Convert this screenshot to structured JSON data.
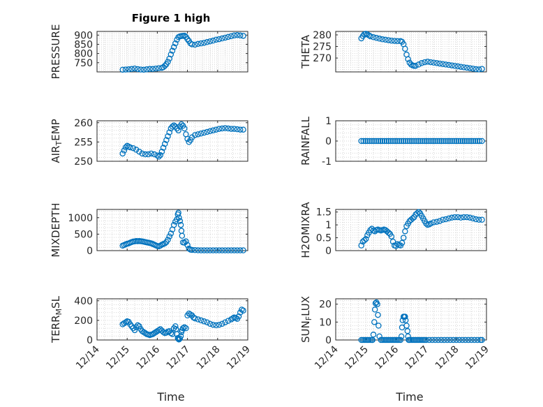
{
  "colors": {
    "marker": "#0072BD",
    "axis": "#262626",
    "grid": "#d6d6d6"
  },
  "xlabel": "Time",
  "chart_data": [
    {
      "type": "scatter",
      "title": "Figure 1 high",
      "ylabel": "PRESSURE",
      "ylim": [
        700,
        920
      ],
      "yticks": [
        750,
        800,
        850,
        900
      ],
      "xticks": [
        "12/14",
        "12/15",
        "12/16",
        "12/17",
        "12/18",
        "12/19"
      ],
      "grid": true,
      "x": [
        14.85,
        14.95,
        15.05,
        15.15,
        15.25,
        15.35,
        15.45,
        15.55,
        15.65,
        15.75,
        15.85,
        15.95,
        16.05,
        16.15,
        16.2,
        16.25,
        16.3,
        16.35,
        16.4,
        16.45,
        16.5,
        16.55,
        16.6,
        16.65,
        16.7,
        16.75,
        16.8,
        16.85,
        16.9,
        16.95,
        17.0,
        17.05,
        17.1,
        17.15,
        17.25,
        17.35,
        17.45,
        17.55,
        17.65,
        17.75,
        17.85,
        17.95,
        18.05,
        18.15,
        18.25,
        18.35,
        18.45,
        18.55,
        18.65,
        18.75,
        18.85
      ],
      "y": [
        712,
        713,
        714,
        716,
        718,
        715,
        713,
        712,
        714,
        716,
        716,
        718,
        720,
        722,
        726,
        733,
        742,
        755,
        772,
        795,
        815,
        835,
        855,
        875,
        889,
        893,
        895,
        896,
        897,
        890,
        878,
        868,
        855,
        850,
        848,
        852,
        855,
        858,
        862,
        866,
        870,
        875,
        878,
        882,
        886,
        890,
        894,
        898,
        900,
        898,
        896
      ]
    },
    {
      "type": "scatter",
      "title": "",
      "ylabel": "THETA",
      "ylim": [
        264,
        281.5
      ],
      "yticks": [
        270,
        275,
        280
      ],
      "xticks": [
        "12/14",
        "12/15",
        "12/16",
        "12/17",
        "12/18",
        "12/19"
      ],
      "grid": true,
      "x": [
        14.85,
        14.9,
        14.95,
        15.0,
        15.05,
        15.1,
        15.15,
        15.25,
        15.35,
        15.45,
        15.55,
        15.65,
        15.75,
        15.85,
        15.95,
        16.05,
        16.15,
        16.2,
        16.25,
        16.3,
        16.35,
        16.4,
        16.45,
        16.5,
        16.55,
        16.6,
        16.65,
        16.75,
        16.85,
        16.95,
        17.05,
        17.15,
        17.25,
        17.35,
        17.45,
        17.55,
        17.65,
        17.75,
        17.85,
        17.95,
        18.05,
        18.15,
        18.25,
        18.35,
        18.45,
        18.55,
        18.65,
        18.75,
        18.85
      ],
      "y": [
        278.5,
        279.5,
        280.3,
        280.5,
        280.2,
        279.8,
        279.4,
        279.0,
        278.7,
        278.4,
        278.1,
        277.9,
        277.7,
        277.5,
        277.4,
        277.3,
        277.3,
        277.0,
        276.0,
        274.0,
        271.5,
        269.5,
        268.0,
        267.2,
        266.8,
        266.6,
        266.6,
        267.2,
        267.8,
        268.2,
        268.4,
        268.2,
        268.0,
        267.8,
        267.6,
        267.4,
        267.2,
        267.0,
        266.8,
        266.6,
        266.4,
        266.2,
        266.0,
        265.8,
        265.6,
        265.4,
        265.2,
        265.1,
        265.3
      ]
    },
    {
      "type": "scatter",
      "title": "",
      "ylabel": "AIR_TEMP",
      "ylim": [
        250,
        260.5
      ],
      "yticks": [
        250,
        255,
        260
      ],
      "xticks": [
        "12/14",
        "12/15",
        "12/16",
        "12/17",
        "12/18",
        "12/19"
      ],
      "grid": true,
      "x": [
        14.85,
        14.9,
        14.95,
        15.0,
        15.05,
        15.1,
        15.2,
        15.3,
        15.4,
        15.5,
        15.6,
        15.7,
        15.8,
        15.9,
        16.0,
        16.05,
        16.1,
        16.15,
        16.2,
        16.25,
        16.3,
        16.35,
        16.4,
        16.45,
        16.5,
        16.55,
        16.6,
        16.65,
        16.7,
        16.75,
        16.8,
        16.85,
        16.9,
        16.95,
        17.0,
        17.05,
        17.1,
        17.15,
        17.25,
        17.35,
        17.45,
        17.55,
        17.65,
        17.75,
        17.85,
        17.95,
        18.05,
        18.15,
        18.25,
        18.35,
        18.45,
        18.55,
        18.65,
        18.75,
        18.85
      ],
      "y": [
        252.0,
        252.8,
        253.6,
        254.0,
        253.8,
        253.6,
        253.4,
        253.0,
        252.5,
        252.0,
        251.8,
        251.8,
        252.0,
        251.8,
        251.5,
        251.2,
        251.6,
        252.5,
        253.5,
        254.5,
        255.5,
        256.5,
        257.5,
        258.5,
        259.0,
        259.3,
        259.0,
        258.5,
        258.0,
        259.0,
        259.6,
        259.2,
        258.5,
        257.0,
        255.8,
        255.0,
        255.5,
        256.2,
        256.8,
        257.0,
        257.2,
        257.4,
        257.6,
        257.8,
        258.0,
        258.2,
        258.4,
        258.5,
        258.6,
        258.5,
        258.4,
        258.4,
        258.3,
        258.2,
        258.2
      ]
    },
    {
      "type": "scatter",
      "title": "",
      "ylabel": "RAINFALL",
      "ylim": [
        -1,
        1
      ],
      "yticks": [
        -1,
        0,
        1
      ],
      "xticks": [
        "12/14",
        "12/15",
        "12/16",
        "12/17",
        "12/18",
        "12/19"
      ],
      "grid": true,
      "x": [
        14.85,
        14.92,
        14.99,
        15.06,
        15.13,
        15.2,
        15.27,
        15.34,
        15.41,
        15.48,
        15.55,
        15.62,
        15.69,
        15.76,
        15.83,
        15.9,
        15.97,
        16.04,
        16.11,
        16.18,
        16.25,
        16.32,
        16.39,
        16.46,
        16.53,
        16.6,
        16.67,
        16.74,
        16.81,
        16.88,
        16.95,
        17.02,
        17.09,
        17.16,
        17.23,
        17.3,
        17.37,
        17.44,
        17.51,
        17.58,
        17.65,
        17.72,
        17.79,
        17.86,
        17.93,
        18.0,
        18.07,
        18.14,
        18.21,
        18.28,
        18.35,
        18.42,
        18.49,
        18.56,
        18.63,
        18.7,
        18.77,
        18.85
      ],
      "y": [
        0,
        0,
        0,
        0,
        0,
        0,
        0,
        0,
        0,
        0,
        0,
        0,
        0,
        0,
        0,
        0,
        0,
        0,
        0,
        0,
        0,
        0,
        0,
        0,
        0,
        0,
        0,
        0,
        0,
        0,
        0,
        0,
        0,
        0,
        0,
        0,
        0,
        0,
        0,
        0,
        0,
        0,
        0,
        0,
        0,
        0,
        0,
        0,
        0,
        0,
        0,
        0,
        0,
        0,
        0,
        0,
        0,
        0
      ]
    },
    {
      "type": "scatter",
      "title": "",
      "ylabel": "MIXDEPTH",
      "ylim": [
        0,
        1250
      ],
      "yticks": [
        0,
        500,
        1000
      ],
      "xticks": [
        "12/14",
        "12/15",
        "12/16",
        "12/17",
        "12/18",
        "12/19"
      ],
      "grid": true,
      "x": [
        14.85,
        14.9,
        14.95,
        15.0,
        15.05,
        15.1,
        15.15,
        15.2,
        15.25,
        15.3,
        15.35,
        15.4,
        15.45,
        15.5,
        15.55,
        15.6,
        15.65,
        15.7,
        15.75,
        15.8,
        15.85,
        15.9,
        15.95,
        16.0,
        16.05,
        16.1,
        16.15,
        16.2,
        16.25,
        16.3,
        16.35,
        16.4,
        16.45,
        16.5,
        16.55,
        16.6,
        16.65,
        16.68,
        16.7,
        16.72,
        16.75,
        16.78,
        16.8,
        16.82,
        16.85,
        16.9,
        16.95,
        17.0,
        17.05,
        17.1,
        17.15,
        17.25,
        17.35,
        17.45,
        17.55,
        17.65,
        17.75,
        17.85,
        17.95,
        18.05,
        18.15,
        18.25,
        18.35,
        18.45,
        18.55,
        18.65,
        18.75,
        18.85
      ],
      "y": [
        150,
        170,
        190,
        210,
        220,
        240,
        260,
        275,
        280,
        290,
        285,
        290,
        285,
        280,
        270,
        260,
        250,
        240,
        230,
        220,
        200,
        180,
        160,
        140,
        130,
        150,
        180,
        200,
        220,
        260,
        330,
        430,
        520,
        640,
        780,
        880,
        950,
        1100,
        1150,
        1000,
        900,
        780,
        600,
        450,
        250,
        240,
        280,
        170,
        60,
        30,
        20,
        15,
        10,
        8,
        8,
        8,
        8,
        8,
        8,
        8,
        8,
        8,
        8,
        8,
        8,
        8,
        8,
        8
      ]
    },
    {
      "type": "scatter",
      "title": "",
      "ylabel": "H2OMIXRA",
      "ylim": [
        0,
        1.6
      ],
      "yticks": [
        0,
        0.5,
        1,
        1.5
      ],
      "xticks": [
        "12/14",
        "12/15",
        "12/16",
        "12/17",
        "12/18",
        "12/19"
      ],
      "grid": true,
      "x": [
        14.85,
        14.9,
        14.95,
        15.0,
        15.05,
        15.1,
        15.15,
        15.2,
        15.25,
        15.3,
        15.35,
        15.4,
        15.45,
        15.5,
        15.55,
        15.6,
        15.65,
        15.7,
        15.75,
        15.8,
        15.85,
        15.9,
        15.95,
        16.0,
        16.05,
        16.1,
        16.15,
        16.2,
        16.25,
        16.3,
        16.35,
        16.4,
        16.45,
        16.5,
        16.55,
        16.6,
        16.65,
        16.7,
        16.75,
        16.8,
        16.85,
        16.9,
        16.95,
        17.0,
        17.05,
        17.1,
        17.15,
        17.25,
        17.35,
        17.45,
        17.55,
        17.65,
        17.75,
        17.85,
        17.95,
        18.05,
        18.15,
        18.25,
        18.35,
        18.45,
        18.55,
        18.65,
        18.75,
        18.85
      ],
      "y": [
        0.2,
        0.35,
        0.4,
        0.45,
        0.6,
        0.7,
        0.8,
        0.85,
        0.78,
        0.75,
        0.8,
        0.82,
        0.8,
        0.78,
        0.8,
        0.82,
        0.8,
        0.75,
        0.7,
        0.65,
        0.55,
        0.35,
        0.2,
        0.18,
        0.25,
        0.22,
        0.2,
        0.3,
        0.5,
        0.75,
        0.95,
        1.05,
        1.15,
        1.2,
        1.25,
        1.3,
        1.4,
        1.45,
        1.5,
        1.45,
        1.35,
        1.25,
        1.15,
        1.05,
        1.0,
        1.02,
        1.05,
        1.1,
        1.12,
        1.15,
        1.2,
        1.22,
        1.25,
        1.28,
        1.3,
        1.3,
        1.28,
        1.3,
        1.3,
        1.28,
        1.25,
        1.22,
        1.2,
        1.2
      ]
    },
    {
      "type": "scatter",
      "title": "",
      "ylabel": "TERR_MSL",
      "ylim": [
        0,
        420
      ],
      "yticks": [
        0,
        200,
        400
      ],
      "xticks": [
        "12/14",
        "12/15",
        "12/16",
        "12/17",
        "12/18",
        "12/19"
      ],
      "grid": true,
      "x": [
        14.85,
        14.9,
        14.95,
        15.0,
        15.05,
        15.1,
        15.15,
        15.2,
        15.25,
        15.3,
        15.35,
        15.4,
        15.45,
        15.5,
        15.55,
        15.6,
        15.65,
        15.7,
        15.75,
        15.8,
        15.85,
        15.9,
        15.95,
        16.0,
        16.05,
        16.1,
        16.15,
        16.2,
        16.25,
        16.3,
        16.35,
        16.4,
        16.45,
        16.5,
        16.55,
        16.6,
        16.62,
        16.65,
        16.68,
        16.7,
        16.72,
        16.75,
        16.78,
        16.8,
        16.82,
        16.85,
        16.9,
        16.95,
        17.0,
        17.05,
        17.1,
        17.15,
        17.2,
        17.25,
        17.35,
        17.45,
        17.55,
        17.65,
        17.75,
        17.85,
        17.95,
        18.05,
        18.15,
        18.25,
        18.35,
        18.45,
        18.5,
        18.55,
        18.6,
        18.65,
        18.7,
        18.75,
        18.8,
        18.85
      ],
      "y": [
        160,
        170,
        180,
        190,
        185,
        160,
        140,
        120,
        100,
        130,
        150,
        140,
        110,
        90,
        80,
        70,
        60,
        55,
        50,
        55,
        60,
        70,
        80,
        90,
        100,
        110,
        95,
        80,
        70,
        75,
        85,
        90,
        70,
        60,
        120,
        140,
        110,
        60,
        20,
        10,
        5,
        15,
        40,
        80,
        100,
        120,
        130,
        120,
        250,
        270,
        260,
        250,
        230,
        220,
        210,
        200,
        190,
        180,
        165,
        155,
        150,
        155,
        165,
        180,
        195,
        210,
        220,
        230,
        225,
        215,
        240,
        280,
        310,
        300
      ]
    },
    {
      "type": "scatter",
      "title": "",
      "ylabel": "SUN_FLUX",
      "ylim": [
        0,
        23
      ],
      "yticks": [
        0,
        10,
        20
      ],
      "xticks": [
        "12/14",
        "12/15",
        "12/16",
        "12/17",
        "12/18",
        "12/19"
      ],
      "grid": true,
      "x": [
        14.85,
        14.9,
        14.95,
        15.0,
        15.05,
        15.1,
        15.15,
        15.2,
        15.22,
        15.25,
        15.28,
        15.3,
        15.32,
        15.35,
        15.38,
        15.4,
        15.42,
        15.45,
        15.5,
        15.55,
        15.6,
        15.65,
        15.7,
        15.75,
        15.8,
        15.85,
        15.9,
        15.95,
        16.0,
        16.05,
        16.1,
        16.15,
        16.18,
        16.2,
        16.22,
        16.25,
        16.28,
        16.3,
        16.32,
        16.35,
        16.38,
        16.4,
        16.42,
        16.45,
        16.5,
        16.55,
        16.6,
        16.65,
        16.7,
        16.75,
        16.8,
        16.85,
        16.9,
        16.95,
        17.0,
        17.1,
        17.2,
        17.3,
        17.4,
        17.5,
        17.6,
        17.7,
        17.8,
        17.9,
        18.0,
        18.1,
        18.2,
        18.3,
        18.4,
        18.5,
        18.6,
        18.7,
        18.8,
        18.85
      ],
      "y": [
        0,
        0,
        0,
        0,
        0,
        0,
        0,
        0,
        0,
        3,
        10,
        17,
        20.5,
        21,
        20,
        14,
        8,
        2,
        0,
        0,
        0,
        0,
        0,
        0,
        0,
        0,
        0,
        0,
        0,
        0,
        0,
        0,
        2,
        7,
        11,
        13,
        13,
        13,
        11,
        8,
        5,
        2,
        0,
        0,
        0,
        0,
        0,
        0,
        0,
        0,
        0,
        0,
        0,
        0,
        0,
        0,
        0,
        0,
        0,
        0,
        0,
        0,
        0,
        0,
        0,
        0,
        0,
        0,
        0,
        0,
        0,
        0,
        0,
        0
      ]
    }
  ]
}
